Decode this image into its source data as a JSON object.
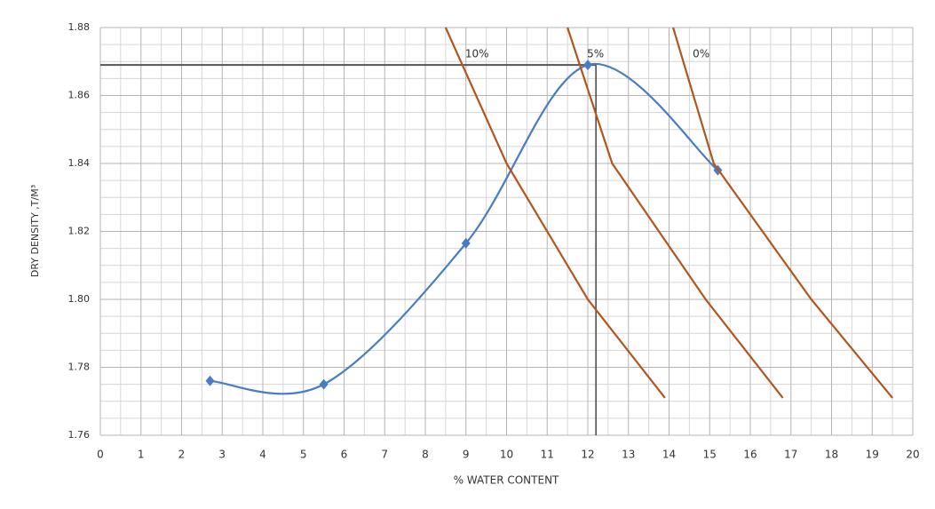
{
  "chart_data": {
    "type": "line",
    "x_label": "% WATER CONTENT",
    "y_label": "DRY DENSITY ,T/M³",
    "xlim": [
      0,
      20
    ],
    "ylim": [
      1.76,
      1.88
    ],
    "xticks": [
      0,
      1,
      2,
      3,
      4,
      5,
      6,
      7,
      8,
      9,
      10,
      11,
      12,
      13,
      14,
      15,
      16,
      17,
      18,
      19,
      20
    ],
    "yticks": [
      1.76,
      1.78,
      {
        "value": 1.8,
        "label": "1.80"
      },
      1.82,
      1.84,
      1.86,
      1.88
    ],
    "grid": true,
    "series": [
      {
        "color": "#4a7cc4",
        "smooth": true,
        "markers": true,
        "x": [
          2.7,
          5.5,
          9,
          12,
          15.2
        ],
        "values": [
          1.776,
          1.775,
          1.8165,
          1.869,
          1.838
        ]
      },
      {
        "name": "10%",
        "color": "#b0561e",
        "x": [
          8.5,
          10,
          12,
          13.9
        ],
        "values": [
          1.88,
          1.84,
          1.8,
          1.771
        ]
      },
      {
        "name": "5%",
        "color": "#b0561e",
        "x": [
          11.5,
          12.6,
          14.9,
          16.8
        ],
        "values": [
          1.88,
          1.84,
          1.8,
          1.771
        ]
      },
      {
        "name": "0%",
        "color": "#b0561e",
        "x": [
          14.1,
          15.1,
          17.5,
          19.5
        ],
        "values": [
          1.88,
          1.84,
          1.8,
          1.771
        ]
      }
    ],
    "optimum": {
      "x": 12.2,
      "y": 1.869
    }
  }
}
